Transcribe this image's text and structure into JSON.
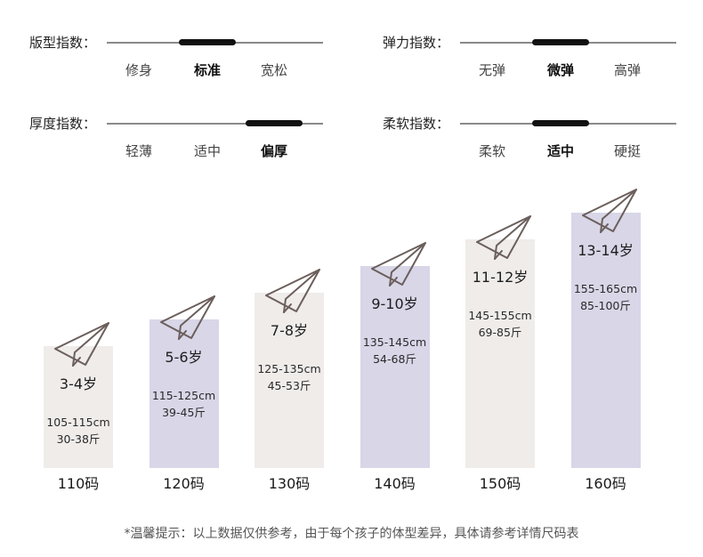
{
  "indices": [
    {
      "label": "版型指数：",
      "options": [
        "修身",
        "标准",
        "宽松"
      ],
      "selected": 1
    },
    {
      "label": "弹力指数：",
      "options": [
        "无弹",
        "微弹",
        "高弹"
      ],
      "selected": 1
    },
    {
      "label": "厚度指数：",
      "options": [
        "轻薄",
        "适中",
        "偏厚"
      ],
      "selected": 2
    },
    {
      "label": "柔软指数：",
      "options": [
        "柔软",
        "适中",
        "硬挺"
      ],
      "selected": 1
    }
  ],
  "sizes": [
    {
      "age": "3-4岁",
      "height": "105-115cm",
      "weight": "30-38斤",
      "code": "110码"
    },
    {
      "age": "5-6岁",
      "height": "115-125cm",
      "weight": "39-45斤",
      "code": "120码"
    },
    {
      "age": "7-8岁",
      "height": "125-135cm",
      "weight": "45-53斤",
      "code": "130码"
    },
    {
      "age": "9-10岁",
      "height": "135-145cm",
      "weight": "54-68斤",
      "code": "140码"
    },
    {
      "age": "11-12岁",
      "height": "145-155cm",
      "weight": "69-85斤",
      "code": "150码"
    },
    {
      "age": "13-14岁",
      "height": "155-165cm",
      "weight": "85-100斤",
      "code": "160码"
    }
  ],
  "colors": {
    "bar_light": "#efecea",
    "bar_purple": "#d8d6e7",
    "plane_stroke": "#6b5f5c",
    "indicator": "#111111"
  },
  "icons": {
    "plane": "paper-plane-icon"
  },
  "note": "*温馨提示：以上数据仅供参考，由于每个孩子的体型差异，具体请参考详情尺码表"
}
